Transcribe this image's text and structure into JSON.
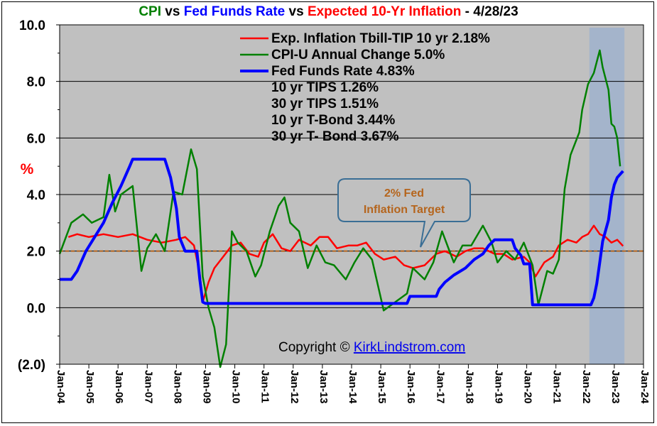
{
  "title": {
    "part1": "CPI",
    "vs1": " vs ",
    "part2": "Fed Funds Rate",
    "vs2": " vs ",
    "part3": "Expected 10-Yr Inflation",
    "date": " - 4/28/23",
    "colors": {
      "cpi": "#008000",
      "fed": "#0000ff",
      "infl": "#ff0000",
      "text": "#000000"
    }
  },
  "chart_data": {
    "type": "line",
    "ylabel": "%",
    "ylim": [
      -2,
      10
    ],
    "xlim": [
      2004.0,
      2024.0
    ],
    "y_ticks": [
      10,
      8,
      6,
      4,
      2,
      0,
      -2
    ],
    "y_tick_labels": [
      "10.0",
      "8.0",
      "6.0",
      "4.0",
      "2.0",
      "0.0",
      "(2.0)"
    ],
    "x_tick_labels": [
      "Jan-04",
      "Jan-05",
      "Jan-06",
      "Jan-07",
      "Jan-08",
      "Jan-09",
      "Jan-10",
      "Jan-11",
      "Jan-12",
      "Jan-13",
      "Jan-14",
      "Jan-15",
      "Jan-16",
      "Jan-17",
      "Jan-18",
      "Jan-19",
      "Jan-20",
      "Jan-21",
      "Jan-22",
      "Jan-23",
      "Jan-24"
    ],
    "target_line": 2.0,
    "shaded_range": [
      2022.0,
      2023.2
    ],
    "series": [
      {
        "name": "Exp. Inflation Tbill-TIP 10 yr",
        "color": "#ff0000",
        "points": [
          [
            2004.3,
            2.5
          ],
          [
            2004.6,
            2.6
          ],
          [
            2005.0,
            2.5
          ],
          [
            2005.5,
            2.6
          ],
          [
            2006.0,
            2.5
          ],
          [
            2006.5,
            2.6
          ],
          [
            2007.0,
            2.4
          ],
          [
            2007.5,
            2.3
          ],
          [
            2008.0,
            2.4
          ],
          [
            2008.3,
            2.5
          ],
          [
            2008.6,
            2.2
          ],
          [
            2008.8,
            1.2
          ],
          [
            2008.9,
            0.2
          ],
          [
            2009.1,
            0.9
          ],
          [
            2009.3,
            1.4
          ],
          [
            2009.6,
            1.8
          ],
          [
            2009.9,
            2.2
          ],
          [
            2010.2,
            2.3
          ],
          [
            2010.5,
            1.9
          ],
          [
            2010.8,
            1.8
          ],
          [
            2011.0,
            2.3
          ],
          [
            2011.3,
            2.6
          ],
          [
            2011.6,
            2.1
          ],
          [
            2011.9,
            2.0
          ],
          [
            2012.2,
            2.4
          ],
          [
            2012.6,
            2.2
          ],
          [
            2012.9,
            2.5
          ],
          [
            2013.2,
            2.5
          ],
          [
            2013.5,
            2.1
          ],
          [
            2013.9,
            2.2
          ],
          [
            2014.2,
            2.2
          ],
          [
            2014.5,
            2.3
          ],
          [
            2014.8,
            1.9
          ],
          [
            2015.1,
            1.7
          ],
          [
            2015.5,
            1.8
          ],
          [
            2015.8,
            1.5
          ],
          [
            2016.1,
            1.4
          ],
          [
            2016.5,
            1.5
          ],
          [
            2016.9,
            1.9
          ],
          [
            2017.2,
            2.0
          ],
          [
            2017.6,
            1.8
          ],
          [
            2017.9,
            2.0
          ],
          [
            2018.2,
            2.1
          ],
          [
            2018.5,
            2.1
          ],
          [
            2018.9,
            1.9
          ],
          [
            2019.2,
            1.9
          ],
          [
            2019.5,
            1.7
          ],
          [
            2019.9,
            1.8
          ],
          [
            2020.1,
            1.6
          ],
          [
            2020.3,
            1.1
          ],
          [
            2020.6,
            1.6
          ],
          [
            2020.9,
            1.8
          ],
          [
            2021.1,
            2.2
          ],
          [
            2021.4,
            2.4
          ],
          [
            2021.7,
            2.3
          ],
          [
            2021.9,
            2.5
          ],
          [
            2022.1,
            2.6
          ],
          [
            2022.3,
            2.9
          ],
          [
            2022.5,
            2.6
          ],
          [
            2022.7,
            2.5
          ],
          [
            2022.9,
            2.3
          ],
          [
            2023.1,
            2.4
          ],
          [
            2023.3,
            2.18
          ]
        ]
      },
      {
        "name": "CPI-U Annual Change",
        "color": "#008000",
        "points": [
          [
            2004.0,
            1.9
          ],
          [
            2004.4,
            3.0
          ],
          [
            2004.8,
            3.3
          ],
          [
            2005.1,
            3.0
          ],
          [
            2005.5,
            3.2
          ],
          [
            2005.7,
            4.7
          ],
          [
            2005.9,
            3.4
          ],
          [
            2006.1,
            4.0
          ],
          [
            2006.5,
            4.3
          ],
          [
            2006.8,
            1.3
          ],
          [
            2007.0,
            2.1
          ],
          [
            2007.3,
            2.6
          ],
          [
            2007.6,
            2.0
          ],
          [
            2007.9,
            4.1
          ],
          [
            2008.2,
            4.0
          ],
          [
            2008.5,
            5.6
          ],
          [
            2008.7,
            4.9
          ],
          [
            2008.9,
            1.1
          ],
          [
            2009.1,
            0.0
          ],
          [
            2009.3,
            -0.7
          ],
          [
            2009.5,
            -2.1
          ],
          [
            2009.7,
            -1.3
          ],
          [
            2009.9,
            2.7
          ],
          [
            2010.1,
            2.3
          ],
          [
            2010.4,
            2.0
          ],
          [
            2010.7,
            1.1
          ],
          [
            2010.9,
            1.5
          ],
          [
            2011.2,
            2.7
          ],
          [
            2011.5,
            3.6
          ],
          [
            2011.7,
            3.9
          ],
          [
            2011.9,
            3.0
          ],
          [
            2012.2,
            2.7
          ],
          [
            2012.5,
            1.4
          ],
          [
            2012.8,
            2.2
          ],
          [
            2013.1,
            1.6
          ],
          [
            2013.4,
            1.5
          ],
          [
            2013.8,
            1.0
          ],
          [
            2014.1,
            1.6
          ],
          [
            2014.4,
            2.1
          ],
          [
            2014.7,
            1.7
          ],
          [
            2014.9,
            0.8
          ],
          [
            2015.1,
            -0.1
          ],
          [
            2015.5,
            0.2
          ],
          [
            2015.9,
            0.5
          ],
          [
            2016.1,
            1.4
          ],
          [
            2016.5,
            1.0
          ],
          [
            2016.8,
            1.6
          ],
          [
            2017.1,
            2.7
          ],
          [
            2017.5,
            1.6
          ],
          [
            2017.8,
            2.2
          ],
          [
            2018.1,
            2.2
          ],
          [
            2018.5,
            2.9
          ],
          [
            2018.8,
            2.3
          ],
          [
            2019.0,
            1.6
          ],
          [
            2019.3,
            2.0
          ],
          [
            2019.6,
            1.7
          ],
          [
            2019.9,
            2.3
          ],
          [
            2020.2,
            1.5
          ],
          [
            2020.4,
            0.1
          ],
          [
            2020.7,
            1.3
          ],
          [
            2020.9,
            1.2
          ],
          [
            2021.1,
            1.7
          ],
          [
            2021.3,
            4.2
          ],
          [
            2021.5,
            5.4
          ],
          [
            2021.8,
            6.2
          ],
          [
            2021.9,
            7.0
          ],
          [
            2022.1,
            7.9
          ],
          [
            2022.3,
            8.3
          ],
          [
            2022.5,
            9.1
          ],
          [
            2022.6,
            8.5
          ],
          [
            2022.8,
            7.7
          ],
          [
            2022.9,
            6.5
          ],
          [
            2023.0,
            6.4
          ],
          [
            2023.1,
            6.0
          ],
          [
            2023.2,
            5.0
          ]
        ]
      },
      {
        "name": "Fed Funds Rate",
        "color": "#0000ff",
        "points": [
          [
            2004.0,
            1.0
          ],
          [
            2004.4,
            1.0
          ],
          [
            2004.6,
            1.3
          ],
          [
            2004.9,
            2.0
          ],
          [
            2005.2,
            2.5
          ],
          [
            2005.5,
            3.0
          ],
          [
            2005.8,
            3.7
          ],
          [
            2006.1,
            4.3
          ],
          [
            2006.4,
            5.0
          ],
          [
            2006.5,
            5.25
          ],
          [
            2007.6,
            5.25
          ],
          [
            2007.8,
            4.6
          ],
          [
            2008.0,
            3.5
          ],
          [
            2008.1,
            2.5
          ],
          [
            2008.3,
            2.0
          ],
          [
            2008.7,
            2.0
          ],
          [
            2008.8,
            1.0
          ],
          [
            2008.9,
            0.2
          ],
          [
            2009.0,
            0.15
          ],
          [
            2015.9,
            0.15
          ],
          [
            2016.0,
            0.4
          ],
          [
            2016.9,
            0.4
          ],
          [
            2017.0,
            0.65
          ],
          [
            2017.2,
            0.9
          ],
          [
            2017.5,
            1.15
          ],
          [
            2017.9,
            1.4
          ],
          [
            2018.2,
            1.7
          ],
          [
            2018.5,
            1.9
          ],
          [
            2018.7,
            2.2
          ],
          [
            2018.9,
            2.4
          ],
          [
            2019.5,
            2.4
          ],
          [
            2019.6,
            2.1
          ],
          [
            2019.8,
            1.85
          ],
          [
            2019.9,
            1.55
          ],
          [
            2020.1,
            1.55
          ],
          [
            2020.2,
            0.1
          ],
          [
            2022.2,
            0.1
          ],
          [
            2022.3,
            0.35
          ],
          [
            2022.4,
            0.85
          ],
          [
            2022.5,
            1.6
          ],
          [
            2022.6,
            2.35
          ],
          [
            2022.8,
            3.1
          ],
          [
            2022.9,
            3.9
          ],
          [
            2023.0,
            4.35
          ],
          [
            2023.1,
            4.6
          ],
          [
            2023.3,
            4.83
          ]
        ]
      }
    ]
  },
  "legend": {
    "items": [
      {
        "label": "Exp. Inflation Tbill-TIP 10 yr 2.18%",
        "color": "#ff0000"
      },
      {
        "label": "CPI-U Annual Change 5.0%",
        "color": "#008000"
      },
      {
        "label": "Fed Funds Rate 4.83%",
        "color": "#0000ff"
      }
    ],
    "extra_lines": [
      "10 yr TIPS 1.26%",
      "30 yr TIPS 1.51%",
      "10 yr T-Bond 3.44%",
      "30 yr T- Bond 3.67%"
    ]
  },
  "callout": {
    "line1": "2% Fed",
    "line2": "Inflation Target"
  },
  "copyright": {
    "prefix": "Copyright © ",
    "link": "KirkLindstrom.com"
  }
}
